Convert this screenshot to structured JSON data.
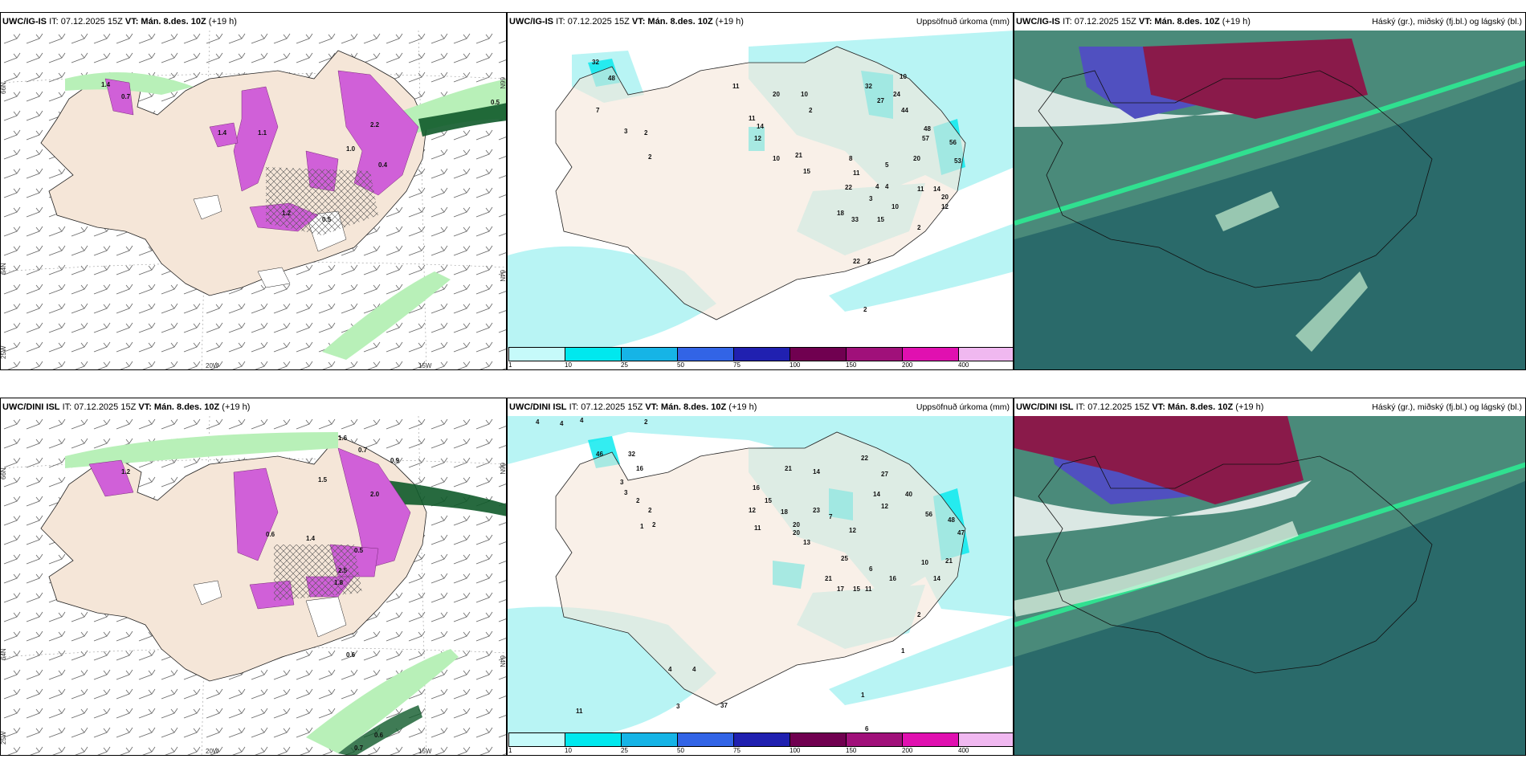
{
  "panels": {
    "top_left": {
      "model": "UWC/IG-IS",
      "it": "IT: 07.12.2025 15Z",
      "vt": "VT: Mán. 8.des. 10Z",
      "lead": "(+19 h)",
      "lat_labels": [
        "66N",
        "64N",
        "25W"
      ],
      "lon_labels": [
        "20W",
        "15W",
        "66N",
        "64N"
      ],
      "values": [
        "1.4",
        "0.7",
        "1.1",
        "0.5",
        "2.2",
        "1.0",
        "0.4",
        "1.2",
        "0.5",
        "1.4"
      ]
    },
    "top_mid": {
      "model": "UWC/IG-IS",
      "it": "IT: 07.12.2025 15Z",
      "vt": "VT: Mán. 8.des. 10Z",
      "lead": "(+19 h)",
      "field": "Uppsöfnuð úrkoma (mm)",
      "values": [
        "32",
        "48",
        "7",
        "3",
        "2",
        "2",
        "11",
        "20",
        "10",
        "2",
        "11",
        "14",
        "12",
        "10",
        "21",
        "15",
        "32",
        "24",
        "27",
        "44",
        "10",
        "48",
        "57",
        "56",
        "53",
        "20",
        "8",
        "11",
        "5",
        "22",
        "4",
        "4",
        "3",
        "11",
        "14",
        "20",
        "12",
        "10",
        "18",
        "33",
        "15",
        "2",
        "22",
        "2",
        "2"
      ]
    },
    "top_right": {
      "model": "UWC/IG-IS",
      "it": "IT: 07.12.2025 15Z",
      "vt": "VT: Mán. 8.des. 10Z",
      "lead": "(+19 h)",
      "field": "Háský (gr.), miðský (fj.bl.) og lágský (bl.)"
    },
    "bottom_left": {
      "model": "UWC/DINI ISL",
      "it": "IT: 07.12.2025 15Z",
      "vt": "VT: Mán. 8.des. 10Z",
      "lead": "(+19 h)",
      "lat_labels": [
        "66N",
        "64N",
        "25W"
      ],
      "lon_labels": [
        "20W",
        "15W",
        "66N",
        "64N"
      ],
      "values": [
        "1.6",
        "0.7",
        "0.9",
        "1.2",
        "1.5",
        "2.0",
        "0.6",
        "1.4",
        "0.5",
        "2.5",
        "1.8",
        "0.6",
        "0.7",
        "0.6"
      ]
    },
    "bottom_mid": {
      "model": "UWC/DINI ISL",
      "it": "IT: 07.12.2025 15Z",
      "vt": "VT: Mán. 8.des. 10Z",
      "lead": "(+19 h)",
      "field": "Uppsöfnuð úrkoma (mm)",
      "values": [
        "4",
        "4",
        "4",
        "2",
        "3",
        "2",
        "46",
        "32",
        "16",
        "3",
        "2",
        "2",
        "1",
        "16",
        "15",
        "18",
        "12",
        "11",
        "20",
        "20",
        "13",
        "23",
        "21",
        "14",
        "22",
        "27",
        "14",
        "12",
        "40",
        "56",
        "48",
        "47",
        "21",
        "25",
        "12",
        "7",
        "6",
        "21",
        "17",
        "15",
        "11",
        "16",
        "10",
        "14",
        "2",
        "1",
        "4",
        "11",
        "4",
        "3",
        "37",
        "1",
        "6"
      ]
    },
    "bottom_right": {
      "model": "UWC/DINI ISL",
      "it": "IT: 07.12.2025 15Z",
      "vt": "VT: Mán. 8.des. 10Z",
      "lead": "(+19 h)",
      "field": "Háský (gr.), miðský (fj.bl.) og lágský (bl.)"
    }
  },
  "legend": {
    "ticks": [
      "1",
      "10",
      "25",
      "50",
      "75",
      "100",
      "150",
      "200",
      "400"
    ],
    "colors": [
      "#c6fafa",
      "#00e8ee",
      "#16b4e6",
      "#3264e6",
      "#2020b0",
      "#700050",
      "#a0107a",
      "#e010b0",
      "#f0b8f0"
    ]
  },
  "colors": {
    "land": "#f5e6d8",
    "snow": "#d060d8",
    "rain_light": "#b8f0b8",
    "precip_light": "#b8f4f4",
    "sea_cloud": "#2a6a6a"
  }
}
